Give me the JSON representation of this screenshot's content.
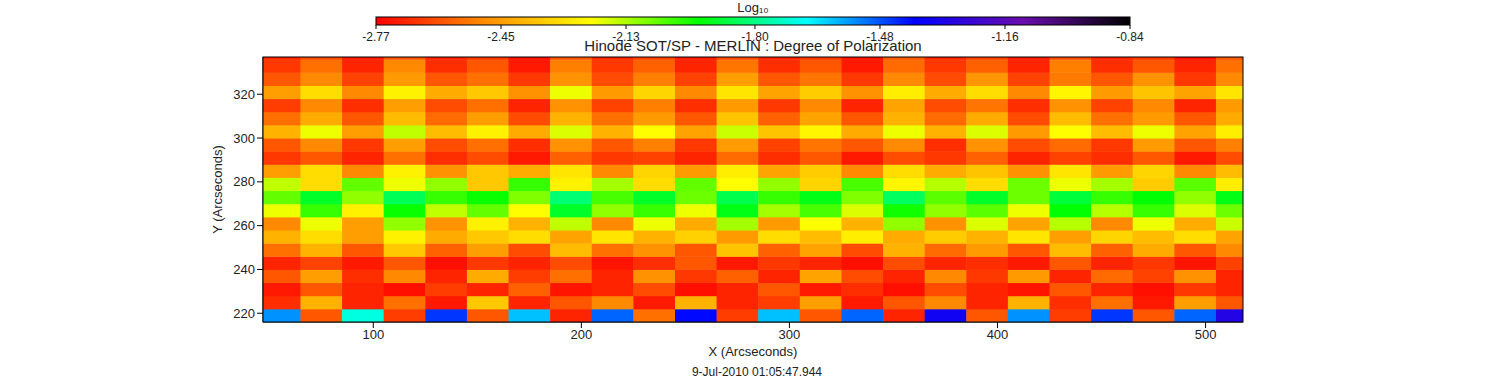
{
  "chart_data": {
    "type": "heatmap",
    "title": "Hinode SOT/SP - MERLIN : Degree of Polarization",
    "x_label": "X (Arcseconds)",
    "y_label": "Y (Arcseconds)",
    "annotation": "9-Jul-2010 01:05:47.944",
    "xlim": [
      47,
      518
    ],
    "ylim": [
      216,
      337
    ],
    "xticks": [
      100,
      200,
      300,
      400,
      500
    ],
    "yticks": [
      220,
      240,
      260,
      280,
      300,
      320
    ],
    "x": [
      55,
      75,
      95,
      115,
      135,
      155,
      175,
      195,
      215,
      235,
      255,
      275,
      295,
      315,
      335,
      355,
      375,
      395,
      415,
      435,
      455,
      475,
      495,
      515
    ],
    "y": [
      219,
      225,
      231,
      237,
      243,
      249,
      255,
      261,
      267,
      273,
      279,
      285,
      291,
      297,
      303,
      309,
      315,
      321,
      327,
      333,
      339
    ],
    "z": [
      [
        -1.55,
        -2.6,
        -1.7,
        -2.65,
        -1.45,
        -2.6,
        -1.6,
        -2.7,
        -1.5,
        -2.55,
        -1.4,
        -2.65,
        -1.6,
        -2.6,
        -1.5,
        -2.7,
        -1.35,
        -2.6,
        -1.55,
        -2.65,
        -1.45,
        -2.6,
        -1.5,
        -1.3
      ],
      [
        -2.68,
        -2.4,
        -2.7,
        -2.55,
        -2.72,
        -2.35,
        -2.7,
        -2.6,
        -2.5,
        -2.72,
        -2.4,
        -2.7,
        -2.65,
        -2.45,
        -2.72,
        -2.6,
        -2.5,
        -2.7,
        -2.4,
        -2.68,
        -2.55,
        -2.72,
        -2.45,
        -2.6
      ],
      [
        -2.72,
        -2.6,
        -2.7,
        -2.74,
        -2.65,
        -2.7,
        -2.58,
        -2.73,
        -2.7,
        -2.62,
        -2.74,
        -2.7,
        -2.6,
        -2.72,
        -2.68,
        -2.74,
        -2.62,
        -2.7,
        -2.73,
        -2.6,
        -2.7,
        -2.74,
        -2.66,
        -2.7
      ],
      [
        -2.6,
        -2.45,
        -2.68,
        -2.5,
        -2.7,
        -2.42,
        -2.65,
        -2.55,
        -2.7,
        -2.48,
        -2.66,
        -2.58,
        -2.7,
        -2.44,
        -2.62,
        -2.7,
        -2.5,
        -2.66,
        -2.46,
        -2.7,
        -2.56,
        -2.64,
        -2.48,
        -2.7
      ],
      [
        -2.7,
        -2.64,
        -2.72,
        -2.6,
        -2.74,
        -2.66,
        -2.7,
        -2.62,
        -2.73,
        -2.68,
        -2.6,
        -2.72,
        -2.66,
        -2.7,
        -2.74,
        -2.62,
        -2.7,
        -2.68,
        -2.72,
        -2.6,
        -2.7,
        -2.66,
        -2.73,
        -2.64
      ],
      [
        -2.55,
        -2.4,
        -2.6,
        -2.35,
        -2.58,
        -2.45,
        -2.62,
        -2.38,
        -2.55,
        -2.48,
        -2.6,
        -2.36,
        -2.58,
        -2.44,
        -2.62,
        -2.4,
        -2.56,
        -2.46,
        -2.6,
        -2.38,
        -2.58,
        -2.42,
        -2.6,
        -2.5
      ],
      [
        -2.4,
        -2.3,
        -2.45,
        -2.25,
        -2.42,
        -2.35,
        -2.3,
        -2.44,
        -2.28,
        -2.4,
        -2.33,
        -2.46,
        -2.3,
        -2.38,
        -2.26,
        -2.42,
        -2.34,
        -2.4,
        -2.28,
        -2.45,
        -2.32,
        -2.38,
        -2.3,
        -2.44
      ],
      [
        -2.5,
        -2.2,
        -2.45,
        -2.1,
        -2.48,
        -2.25,
        -2.4,
        -2.15,
        -2.5,
        -2.2,
        -2.42,
        -2.12,
        -2.46,
        -2.22,
        -2.4,
        -2.1,
        -2.48,
        -2.18,
        -2.44,
        -2.14,
        -2.5,
        -2.2,
        -2.42,
        -2.16
      ],
      [
        -2.2,
        -2.0,
        -2.25,
        -1.95,
        -2.15,
        -2.05,
        -2.22,
        -1.9,
        -2.1,
        -2.0,
        -2.2,
        -1.92,
        -2.12,
        -2.02,
        -2.18,
        -1.96,
        -2.1,
        -2.04,
        -2.2,
        -1.94,
        -2.14,
        -2.0,
        -2.18,
        -2.06
      ],
      [
        -2.05,
        -1.9,
        -2.1,
        -1.85,
        -2.0,
        -1.95,
        -2.08,
        -1.82,
        -2.02,
        -1.9,
        -2.06,
        -1.86,
        -2.0,
        -1.92,
        -2.08,
        -1.84,
        -2.04,
        -1.9,
        -2.06,
        -1.88,
        -2.0,
        -1.94,
        -2.1,
        -1.92
      ],
      [
        -2.15,
        -2.3,
        -2.05,
        -2.2,
        -2.1,
        -2.35,
        -2.0,
        -2.25,
        -2.12,
        -2.3,
        -2.05,
        -2.22,
        -2.1,
        -2.32,
        -2.02,
        -2.24,
        -2.14,
        -2.3,
        -2.06,
        -2.2,
        -2.12,
        -2.34,
        -2.04,
        -2.26
      ],
      [
        -2.45,
        -2.3,
        -2.5,
        -2.25,
        -2.48,
        -2.35,
        -2.42,
        -2.28,
        -2.5,
        -2.32,
        -2.46,
        -2.26,
        -2.44,
        -2.34,
        -2.5,
        -2.3,
        -2.42,
        -2.36,
        -2.48,
        -2.28,
        -2.46,
        -2.32,
        -2.5,
        -2.38
      ],
      [
        -2.66,
        -2.6,
        -2.7,
        -2.55,
        -2.68,
        -2.62,
        -2.72,
        -2.58,
        -2.66,
        -2.64,
        -2.7,
        -2.56,
        -2.68,
        -2.6,
        -2.72,
        -2.62,
        -2.66,
        -2.58,
        -2.7,
        -2.64,
        -2.68,
        -2.6,
        -2.72,
        -2.62
      ],
      [
        -2.6,
        -2.5,
        -2.66,
        -2.45,
        -2.62,
        -2.55,
        -2.68,
        -2.48,
        -2.6,
        -2.52,
        -2.66,
        -2.46,
        -2.64,
        -2.54,
        -2.6,
        -2.5,
        -2.68,
        -2.48,
        -2.62,
        -2.56,
        -2.66,
        -2.46,
        -2.6,
        -2.52
      ],
      [
        -2.4,
        -2.2,
        -2.45,
        -2.15,
        -2.38,
        -2.25,
        -2.42,
        -2.18,
        -2.4,
        -2.22,
        -2.44,
        -2.16,
        -2.36,
        -2.24,
        -2.42,
        -2.2,
        -2.4,
        -2.18,
        -2.46,
        -2.22,
        -2.38,
        -2.2,
        -2.44,
        -2.26
      ],
      [
        -2.55,
        -2.42,
        -2.6,
        -2.38,
        -2.56,
        -2.45,
        -2.62,
        -2.4,
        -2.55,
        -2.46,
        -2.6,
        -2.36,
        -2.58,
        -2.44,
        -2.6,
        -2.4,
        -2.56,
        -2.42,
        -2.62,
        -2.38,
        -2.55,
        -2.46,
        -2.6,
        -2.42
      ],
      [
        -2.65,
        -2.5,
        -2.68,
        -2.45,
        -2.62,
        -2.55,
        -2.7,
        -2.48,
        -2.64,
        -2.52,
        -2.68,
        -2.46,
        -2.66,
        -2.5,
        -2.7,
        -2.44,
        -2.62,
        -2.54,
        -2.68,
        -2.48,
        -2.64,
        -2.5,
        -2.7,
        -2.46
      ],
      [
        -2.45,
        -2.3,
        -2.5,
        -2.25,
        -2.42,
        -2.35,
        -2.48,
        -2.2,
        -2.46,
        -2.32,
        -2.5,
        -2.28,
        -2.44,
        -2.34,
        -2.48,
        -2.26,
        -2.42,
        -2.3,
        -2.5,
        -2.24,
        -2.46,
        -2.36,
        -2.44,
        -2.28
      ],
      [
        -2.6,
        -2.5,
        -2.64,
        -2.46,
        -2.6,
        -2.55,
        -2.66,
        -2.48,
        -2.62,
        -2.52,
        -2.64,
        -2.45,
        -2.6,
        -2.54,
        -2.66,
        -2.5,
        -2.62,
        -2.47,
        -2.64,
        -2.53,
        -2.6,
        -2.48,
        -2.66,
        -2.5
      ],
      [
        -2.66,
        -2.55,
        -2.7,
        -2.5,
        -2.68,
        -2.6,
        -2.72,
        -2.52,
        -2.66,
        -2.58,
        -2.7,
        -2.54,
        -2.68,
        -2.6,
        -2.72,
        -2.56,
        -2.66,
        -2.58,
        -2.7,
        -2.52,
        -2.68,
        -2.6,
        -2.7,
        -2.55
      ],
      [
        -2.7,
        -2.62,
        -2.72,
        -2.6,
        -2.7,
        -2.66,
        -2.74,
        -2.6,
        -2.7,
        -2.64,
        -2.72,
        -2.62,
        -2.7,
        -2.66,
        -2.74,
        -2.6,
        -2.7,
        -2.64,
        -2.72,
        -2.62,
        -2.7,
        -2.66,
        -2.74,
        -2.6
      ]
    ],
    "colorbar": {
      "label": "Log₁₀",
      "range": [
        -2.77,
        -0.84
      ],
      "ticks": [
        -2.77,
        -2.45,
        -2.13,
        {
          "value": -1.8,
          "label": "-1.80"
        },
        -1.48,
        -1.16,
        -0.84
      ],
      "colors": [
        "#ff0000",
        "#ff8c00",
        "#ffff00",
        "#00ff00",
        "#00ffff",
        "#0000ff",
        "#6a0dad",
        "#000000"
      ]
    }
  }
}
